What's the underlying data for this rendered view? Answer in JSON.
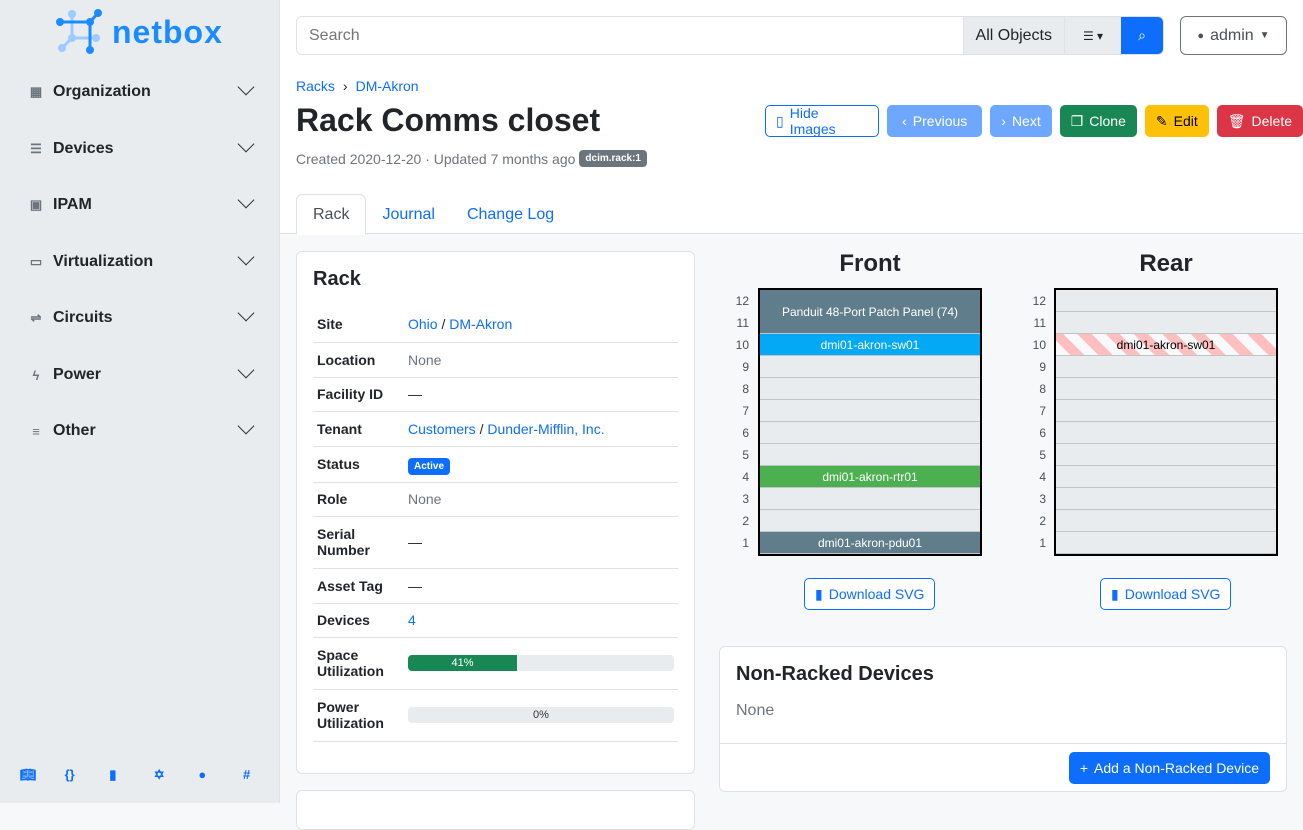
{
  "brand": "netbox",
  "sidebar": {
    "items": [
      {
        "label": "Organization",
        "icon": "building-icon"
      },
      {
        "label": "Devices",
        "icon": "server-icon"
      },
      {
        "label": "IPAM",
        "icon": "ip-icon"
      },
      {
        "label": "Virtualization",
        "icon": "monitor-icon"
      },
      {
        "label": "Circuits",
        "icon": "circuit-icon"
      },
      {
        "label": "Power",
        "icon": "lightning-icon"
      },
      {
        "label": "Other",
        "icon": "list-icon"
      }
    ],
    "footer_icons": [
      "book-icon",
      "api-icon",
      "docs-icon",
      "graphql-icon",
      "github-icon",
      "slack-icon"
    ]
  },
  "search": {
    "placeholder": "Search",
    "scope": "All Objects"
  },
  "user": {
    "name": "admin"
  },
  "breadcrumb": [
    "Racks",
    "DM-Akron"
  ],
  "page": {
    "title": "Rack Comms closet",
    "meta": "Created 2020-12-20 · Updated 7 months ago",
    "badge": "dcim.rack:1"
  },
  "buttons": {
    "hide_images": "Hide Images",
    "previous": "Previous",
    "next": "Next",
    "clone": "Clone",
    "edit": "Edit",
    "delete": "Delete"
  },
  "tabs": [
    "Rack",
    "Journal",
    "Change Log"
  ],
  "rack_card": {
    "title": "Rack",
    "site": [
      "Ohio",
      "DM-Akron"
    ],
    "location": "None",
    "facility_id": "—",
    "tenant": [
      "Customers",
      "Dunder-Mifflin, Inc."
    ],
    "status": "Active",
    "role": "None",
    "serial": "—",
    "asset_tag": "—",
    "devices": "4",
    "space_util": 41,
    "space_util_label": "41%",
    "power_util": 0,
    "power_util_label": "0%",
    "labels": {
      "site": "Site",
      "location": "Location",
      "facility": "Facility ID",
      "tenant": "Tenant",
      "status": "Status",
      "role": "Role",
      "serial": "Serial Number",
      "asset": "Asset Tag",
      "devices": "Devices",
      "space": "Space Utilization",
      "power": "Power Utilization"
    }
  },
  "elevations": {
    "front_title": "Front",
    "rear_title": "Rear",
    "download": "Download SVG",
    "front": [
      {
        "name": "Panduit 48-Port Patch Panel (74)",
        "top": 12,
        "height": 2,
        "color": "#607d8b"
      },
      {
        "name": "dmi01-akron-sw01",
        "top": 10,
        "height": 1,
        "color": "#03a9f4"
      },
      {
        "name": "dmi01-akron-rtr01",
        "top": 4,
        "height": 1,
        "color": "#4caf50"
      },
      {
        "name": "dmi01-akron-pdu01",
        "top": 1,
        "height": 1,
        "color": "#607d8b"
      }
    ],
    "rear": [
      {
        "name": "dmi01-akron-sw01",
        "top": 10,
        "height": 1
      }
    ]
  },
  "non_racked": {
    "title": "Non-Racked Devices",
    "empty": "None",
    "add": "Add a Non-Racked Device"
  }
}
